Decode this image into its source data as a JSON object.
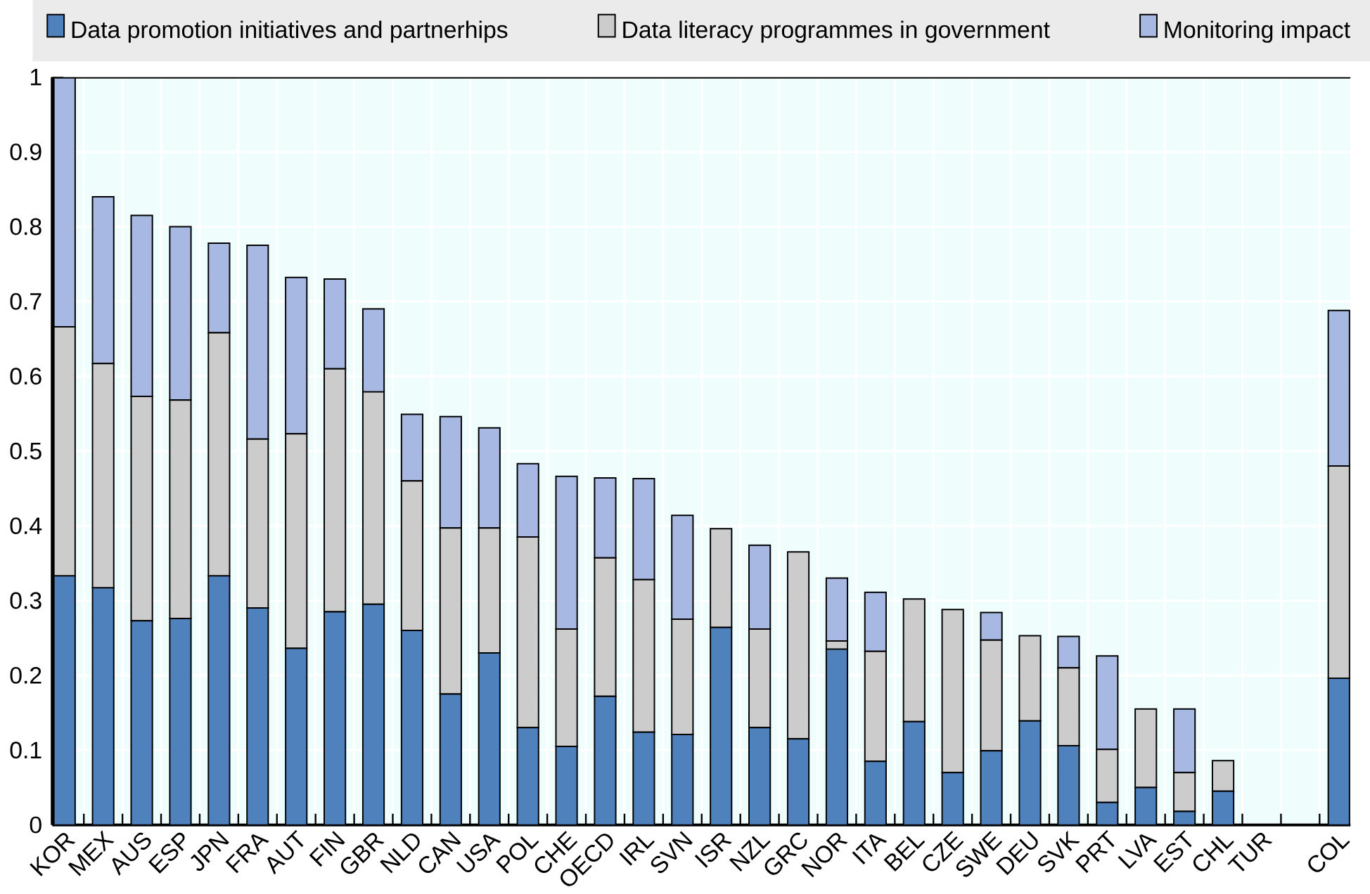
{
  "chart_data": {
    "type": "bar",
    "stacked": true,
    "categories": [
      "KOR",
      "MEX",
      "AUS",
      "ESP",
      "JPN",
      "FRA",
      "AUT",
      "FIN",
      "GBR",
      "NLD",
      "CAN",
      "USA",
      "POL",
      "CHE",
      "OECD",
      "IRL",
      "SVN",
      "ISR",
      "NZL",
      "GRC",
      "NOR",
      "ITA",
      "BEL",
      "CZE",
      "SWE",
      "DEU",
      "SVK",
      "PRT",
      "LVA",
      "EST",
      "CHL",
      "TUR",
      null,
      "COL"
    ],
    "series": [
      {
        "name": "Data promotion initiatives and partnerhips",
        "color": "#4f81bd",
        "values": [
          0.333,
          0.317,
          0.273,
          0.276,
          0.333,
          0.29,
          0.236,
          0.285,
          0.295,
          0.26,
          0.175,
          0.23,
          0.13,
          0.105,
          0.172,
          0.124,
          0.121,
          0.264,
          0.13,
          0.115,
          0.235,
          0.085,
          0.138,
          0.07,
          0.099,
          0.139,
          0.106,
          0.03,
          0.05,
          0.018,
          0.045,
          0,
          null,
          0.196
        ]
      },
      {
        "name": "Data literacy programmes in government",
        "color": "#cccccc",
        "values": [
          0.333,
          0.3,
          0.3,
          0.292,
          0.325,
          0.226,
          0.287,
          0.325,
          0.284,
          0.2,
          0.222,
          0.167,
          0.255,
          0.157,
          0.185,
          0.204,
          0.154,
          0.132,
          0.132,
          0.25,
          0.011,
          0.147,
          0.164,
          0.218,
          0.148,
          0.114,
          0.104,
          0.071,
          0.105,
          0.052,
          0.041,
          0,
          null,
          0.284
        ]
      },
      {
        "name": "Monitoring impact",
        "color": "#a7b8e3",
        "values": [
          0.333,
          0.223,
          0.242,
          0.232,
          0.12,
          0.259,
          0.209,
          0.12,
          0.111,
          0.089,
          0.149,
          0.134,
          0.098,
          0.204,
          0.107,
          0.135,
          0.139,
          0,
          0.112,
          0,
          0.084,
          0.079,
          0,
          0,
          0.037,
          0,
          0.042,
          0.125,
          0,
          0.085,
          0,
          0,
          null,
          0.208
        ]
      }
    ],
    "ylim": [
      0,
      1
    ],
    "yticks": [
      0,
      0.1,
      0.2,
      0.3,
      0.4,
      0.5,
      0.6,
      0.7,
      0.8,
      0.9,
      1
    ],
    "grid": true,
    "legend": "top"
  }
}
